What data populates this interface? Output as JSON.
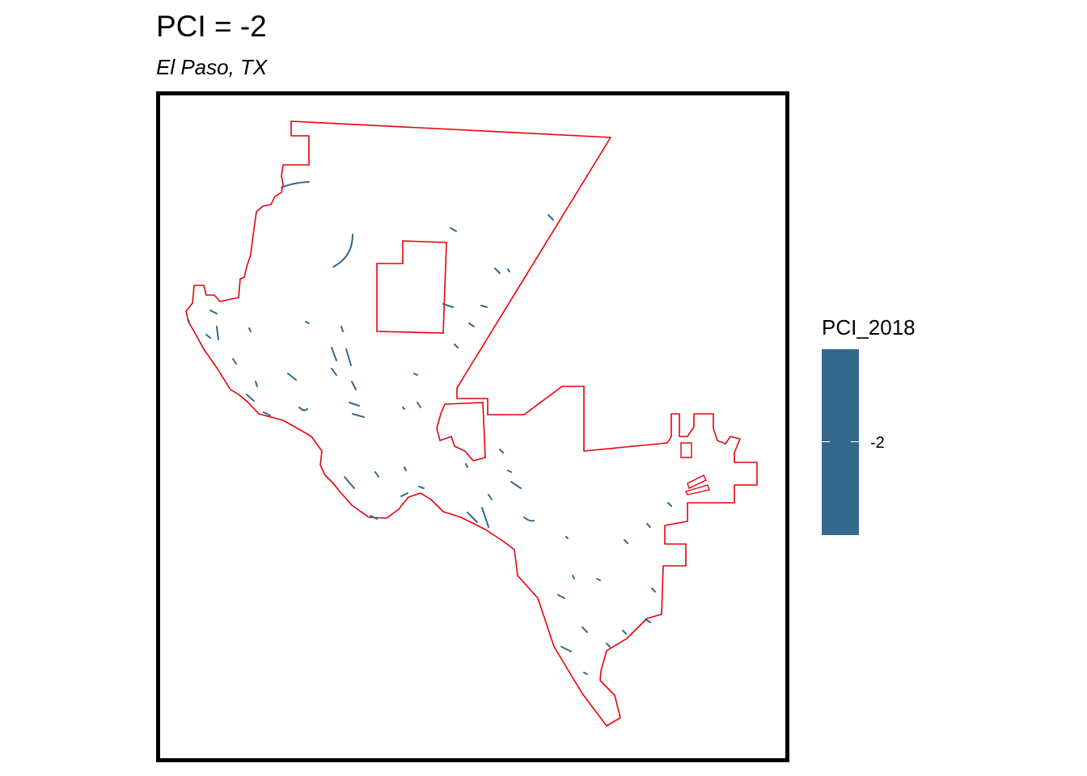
{
  "title": "PCI = -2",
  "subtitle": "El Paso, TX",
  "legend": {
    "title": "PCI_2018",
    "entries": [
      {
        "label": "-2",
        "color": "#35688f"
      }
    ]
  },
  "map": {
    "boundary_color": "#e8000b",
    "feature_color": "#35688f",
    "frame_color": "#000000"
  }
}
